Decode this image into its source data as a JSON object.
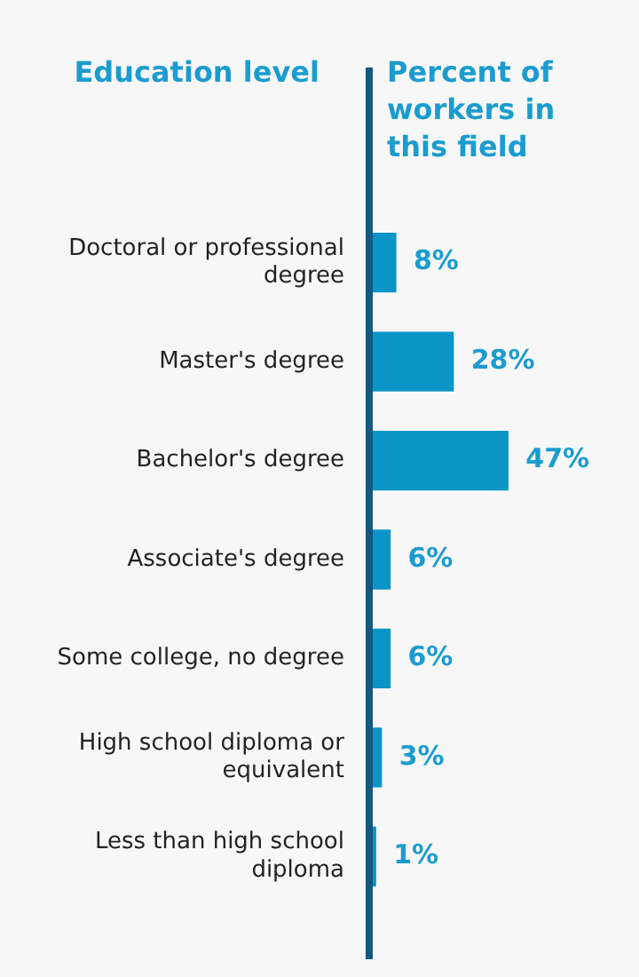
{
  "chart_data": {
    "type": "bar",
    "orientation": "horizontal",
    "ylabel": "Education level",
    "xlabel": "Percent of workers in this field",
    "categories": [
      "Doctoral or professional degree",
      "Master's degree",
      "Bachelor's degree",
      "Associate's degree",
      "Some college, no degree",
      "High school diploma or equivalent",
      "Less than high school diploma"
    ],
    "values": [
      8,
      28,
      47,
      6,
      6,
      3,
      1
    ],
    "value_labels": [
      "8%",
      "28%",
      "47%",
      "6%",
      "6%",
      "3%",
      "1%"
    ],
    "color": "#0b95c6",
    "tick_labels": "y",
    "legend": false
  }
}
